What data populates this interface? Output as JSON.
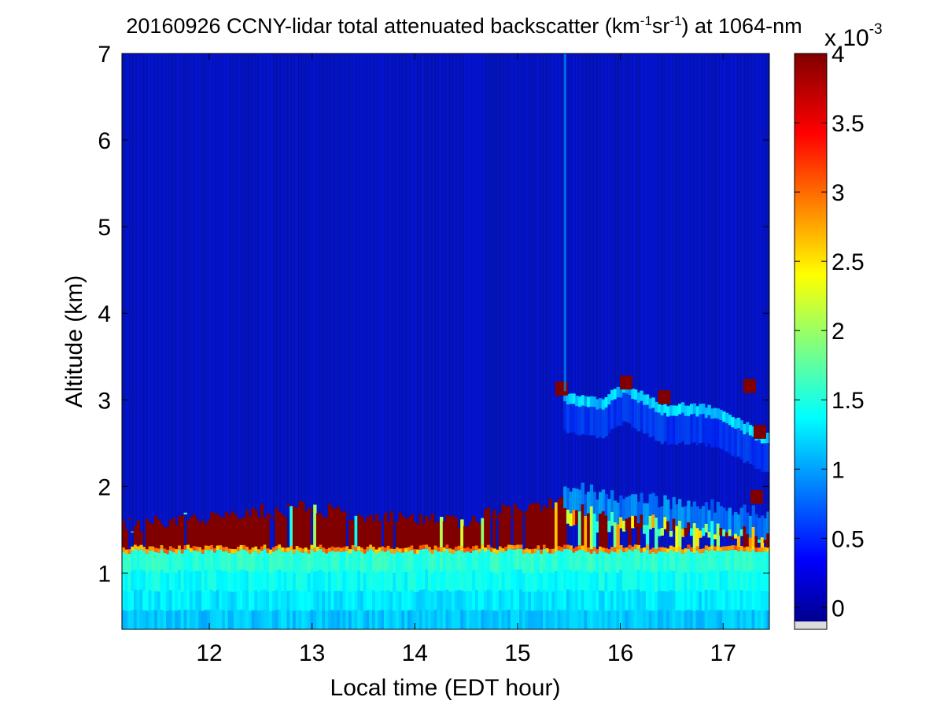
{
  "chart_data": {
    "type": "heatmap",
    "title": {
      "pre": "20160926 CCNY-lidar total attenuated backscatter (km",
      "sup1": "-1",
      "mid": "sr",
      "sup2": "-1",
      "post": ") at 1064-nm"
    },
    "xlabel": "Local time (EDT hour)",
    "ylabel": "Altitude (km)",
    "xlim": [
      11.15,
      17.45
    ],
    "ylim": [
      0.35,
      7
    ],
    "xticks": [
      12,
      13,
      14,
      15,
      16,
      17
    ],
    "yticks": [
      1,
      2,
      3,
      4,
      5,
      6,
      7
    ],
    "colorbar": {
      "label_base": "x 10",
      "label_exp": "-3",
      "range": [
        -0.1,
        4
      ],
      "ticks": [
        "0",
        "0.5",
        "1",
        "1.5",
        "2",
        "2.5",
        "3",
        "3.5",
        "4"
      ],
      "tick_values": [
        0,
        0.5,
        1,
        1.5,
        2,
        2.5,
        3,
        3.5,
        4
      ],
      "colormap": "jet"
    },
    "features": {
      "surface_layer": {
        "top_altitude_km": 1.25,
        "value_range": [
          1.0,
          1.6
        ]
      },
      "boundary_layer_cloud_top": [
        {
          "time": 11.3,
          "alt": 1.55
        },
        {
          "time": 11.8,
          "alt": 1.62
        },
        {
          "time": 12.3,
          "alt": 1.7
        },
        {
          "time": 12.9,
          "alt": 1.75
        },
        {
          "time": 13.5,
          "alt": 1.68
        },
        {
          "time": 14.0,
          "alt": 1.62
        },
        {
          "time": 14.5,
          "alt": 1.6
        },
        {
          "time": 15.0,
          "alt": 1.75
        },
        {
          "time": 15.4,
          "alt": 1.8
        },
        {
          "time": 15.8,
          "alt": 1.68
        },
        {
          "time": 16.2,
          "alt": 1.62
        },
        {
          "time": 16.6,
          "alt": 1.55
        },
        {
          "time": 17.0,
          "alt": 1.5
        },
        {
          "time": 17.45,
          "alt": 1.45
        }
      ],
      "upper_layer": [
        {
          "time": 15.45,
          "alt": 3.1
        },
        {
          "time": 15.8,
          "alt": 3.0
        },
        {
          "time": 16.05,
          "alt": 3.2
        },
        {
          "time": 16.4,
          "alt": 2.95
        },
        {
          "time": 16.8,
          "alt": 2.95
        },
        {
          "time": 17.1,
          "alt": 2.8
        },
        {
          "time": 17.45,
          "alt": 2.6
        }
      ],
      "saturated_patches": [
        {
          "time": 15.42,
          "alt": 3.15
        },
        {
          "time": 16.05,
          "alt": 3.22
        },
        {
          "time": 16.42,
          "alt": 3.05
        },
        {
          "time": 17.25,
          "alt": 3.18
        },
        {
          "time": 17.35,
          "alt": 2.65
        },
        {
          "time": 17.32,
          "alt": 1.9
        }
      ],
      "background_value": 0.05,
      "saturation_value": 4
    }
  }
}
